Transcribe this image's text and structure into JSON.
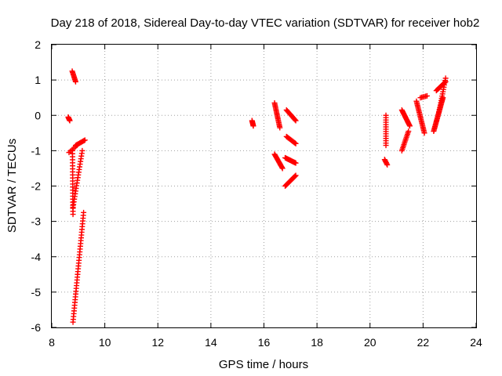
{
  "chart_data": {
    "type": "scatter",
    "title": "Day 218 of 2018, Sidereal Day-to-day VTEC variation (SDTVAR) for receiver hob2",
    "xlabel": "GPS time / hours",
    "ylabel": "SDTVAR / TECUs",
    "xlim": [
      8,
      24
    ],
    "ylim": [
      -6,
      2
    ],
    "xticks": [
      8,
      10,
      12,
      14,
      16,
      18,
      20,
      22,
      24
    ],
    "yticks": [
      -6,
      -5,
      -4,
      -3,
      -2,
      -1,
      0,
      1,
      2
    ],
    "grid": true,
    "marker": "+",
    "series": [
      {
        "name": "SDTVAR",
        "color": "#ff0000",
        "segments": [
          {
            "x0": 8.62,
            "y0": -0.05,
            "x1": 8.68,
            "y1": -0.15,
            "n": 8
          },
          {
            "x0": 8.77,
            "y0": 1.25,
            "x1": 8.9,
            "y1": 0.95,
            "n": 10
          },
          {
            "x0": 8.65,
            "y0": -1.05,
            "x1": 8.95,
            "y1": -0.85,
            "n": 6
          },
          {
            "x0": 8.78,
            "y0": -1.0,
            "x1": 8.8,
            "y1": -2.8,
            "n": 22
          },
          {
            "x0": 8.9,
            "y0": -0.85,
            "x1": 9.25,
            "y1": -0.7,
            "n": 10
          },
          {
            "x0": 9.15,
            "y0": -1.0,
            "x1": 8.8,
            "y1": -2.6,
            "n": 22
          },
          {
            "x0": 9.2,
            "y0": -2.75,
            "x1": 8.8,
            "y1": -5.85,
            "n": 40
          },
          {
            "x0": 15.55,
            "y0": -0.15,
            "x1": 15.6,
            "y1": -0.3,
            "n": 8
          },
          {
            "x0": 16.4,
            "y0": 0.35,
            "x1": 16.6,
            "y1": -0.35,
            "n": 20
          },
          {
            "x0": 16.4,
            "y0": -1.1,
            "x1": 16.7,
            "y1": -1.5,
            "n": 16
          },
          {
            "x0": 16.85,
            "y0": 0.15,
            "x1": 17.2,
            "y1": -0.15,
            "n": 14
          },
          {
            "x0": 16.85,
            "y0": -0.6,
            "x1": 17.2,
            "y1": -0.8,
            "n": 12
          },
          {
            "x0": 16.8,
            "y0": -1.2,
            "x1": 17.2,
            "y1": -1.35,
            "n": 14
          },
          {
            "x0": 16.8,
            "y0": -2.0,
            "x1": 17.2,
            "y1": -1.7,
            "n": 16
          },
          {
            "x0": 20.6,
            "y0": 0.0,
            "x1": 20.6,
            "y1": -0.85,
            "n": 14
          },
          {
            "x0": 20.55,
            "y0": -1.25,
            "x1": 20.65,
            "y1": -1.4,
            "n": 6
          },
          {
            "x0": 21.2,
            "y0": -1.0,
            "x1": 21.45,
            "y1": -0.45,
            "n": 14
          },
          {
            "x0": 21.2,
            "y0": 0.15,
            "x1": 21.5,
            "y1": -0.3,
            "n": 18
          },
          {
            "x0": 21.75,
            "y0": 0.4,
            "x1": 22.05,
            "y1": -0.5,
            "n": 24
          },
          {
            "x0": 21.9,
            "y0": 0.5,
            "x1": 22.15,
            "y1": 0.55,
            "n": 6
          },
          {
            "x0": 22.4,
            "y0": -0.45,
            "x1": 22.75,
            "y1": 0.5,
            "n": 30
          },
          {
            "x0": 22.5,
            "y0": 0.7,
            "x1": 22.85,
            "y1": 0.95,
            "n": 12
          },
          {
            "x0": 22.6,
            "y0": 0.1,
            "x1": 22.85,
            "y1": 1.05,
            "n": 16
          }
        ]
      }
    ]
  }
}
